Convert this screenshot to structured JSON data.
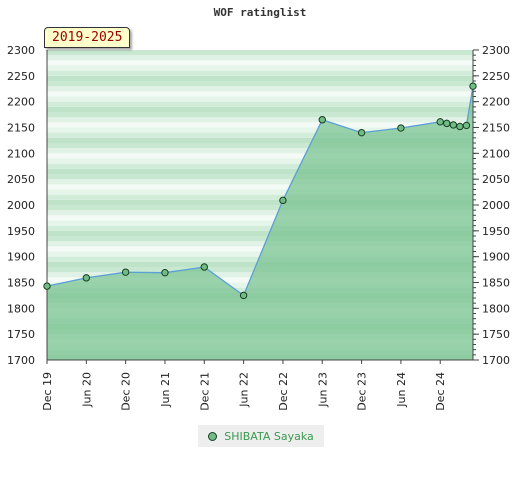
{
  "chart_data": {
    "type": "area",
    "title": "WOF ratinglist",
    "badge": "2019-2025",
    "ylim": [
      1700,
      2300
    ],
    "y_ticks": [
      1700,
      1750,
      1800,
      1850,
      1900,
      1950,
      2000,
      2050,
      2100,
      2150,
      2200,
      2250,
      2300
    ],
    "x_ticks": [
      "Dec 19",
      "Jun 20",
      "Dec 20",
      "Jun 21",
      "Dec 21",
      "Jun 22",
      "Dec 22",
      "Jun 23",
      "Dec 23",
      "Jun 24",
      "Dec 24"
    ],
    "legend_position": "bottom",
    "colors": {
      "fill": "#7cc493",
      "line": "#5b9fd6",
      "marker": "#6fbd84"
    },
    "series": [
      {
        "name": "SHIBATA Sayaka",
        "x": [
          "Dec 19",
          "Jun 20",
          "Dec 20",
          "Jun 21",
          "Dec 21",
          "Jun 22",
          "Dec 22",
          "Jun 23",
          "Dec 23",
          "Jun 24",
          "Dec 24",
          "Jan 25",
          "Feb 25",
          "Mar 25",
          "Apr 25",
          "May 25"
        ],
        "values": [
          1843,
          1859,
          1870,
          1869,
          1880,
          1825,
          2009,
          2165,
          2140,
          2149,
          2161,
          2158,
          2155,
          2152,
          2154,
          2230
        ]
      }
    ]
  }
}
